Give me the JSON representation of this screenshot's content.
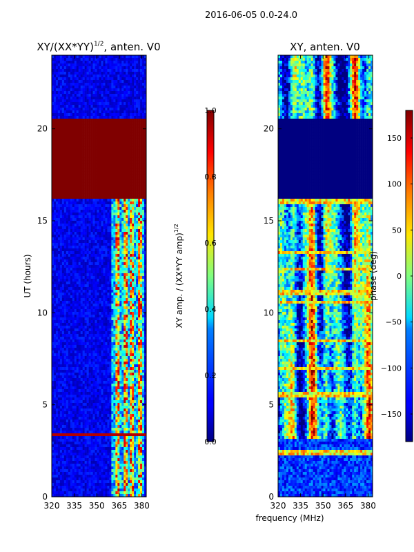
{
  "suptitle": "2016-06-05 0.0-24.0",
  "xlabel_shared": "frequency (MHz)",
  "chart_data": [
    {
      "type": "heatmap",
      "title_main": "XY/(XX*YY)",
      "title_sup": "1/2",
      "title_tail": ", anten. V0",
      "ylabel": "UT (hours)",
      "xticks": [
        320,
        335,
        350,
        365,
        380
      ],
      "xtick_labels": [
        "320",
        "335",
        "350",
        "365",
        "380"
      ],
      "xlim": [
        320,
        383
      ],
      "yticks": [
        0,
        5,
        10,
        15,
        20
      ],
      "ytick_labels": [
        "0",
        "5",
        "10",
        "15",
        "20"
      ],
      "ylim": [
        0,
        24
      ],
      "colorbar_label_main": "XY amp. / (XX*YY amp)",
      "colorbar_label_sup": "1/2",
      "colorbar_ticks": [
        0.0,
        0.2,
        0.4,
        0.6,
        0.8,
        1.0
      ],
      "colorbar_tick_labels": [
        "0.0",
        "0.2",
        "0.4",
        "0.6",
        "0.8",
        "1.0"
      ],
      "colorbar_range": [
        0,
        1
      ],
      "features": {
        "saturated_band_hours": [
          16.2,
          20.6
        ],
        "bright_freq_band_mhz": [
          360,
          382
        ],
        "bright_columns_mhz": [
          364,
          369,
          374,
          379
        ],
        "background_level": 0.05,
        "flag_level": 1.0
      }
    },
    {
      "type": "heatmap",
      "title": "XY, anten. V0",
      "xticks": [
        320,
        335,
        350,
        365,
        380
      ],
      "xtick_labels": [
        "320",
        "335",
        "350",
        "365",
        "380"
      ],
      "xlim": [
        320,
        383
      ],
      "yticks": [
        0,
        5,
        10,
        15,
        20
      ],
      "ytick_labels": [
        "0",
        "5",
        "10",
        "15",
        "20"
      ],
      "ylim": [
        0,
        24
      ],
      "colorbar_label": "phase (deg)",
      "colorbar_ticks": [
        -150,
        -100,
        -50,
        0,
        50,
        100,
        150
      ],
      "colorbar_tick_labels": [
        "−150",
        "−100",
        "−50",
        "0",
        "50",
        "100",
        "150"
      ],
      "colorbar_range": [
        -180,
        180
      ],
      "features": {
        "uniform_band_hours": [
          16.2,
          20.6
        ],
        "uniform_band_value": -180,
        "vertical_stripe_freqs_mhz": [
          330,
          343,
          352,
          371,
          381
        ]
      }
    }
  ]
}
